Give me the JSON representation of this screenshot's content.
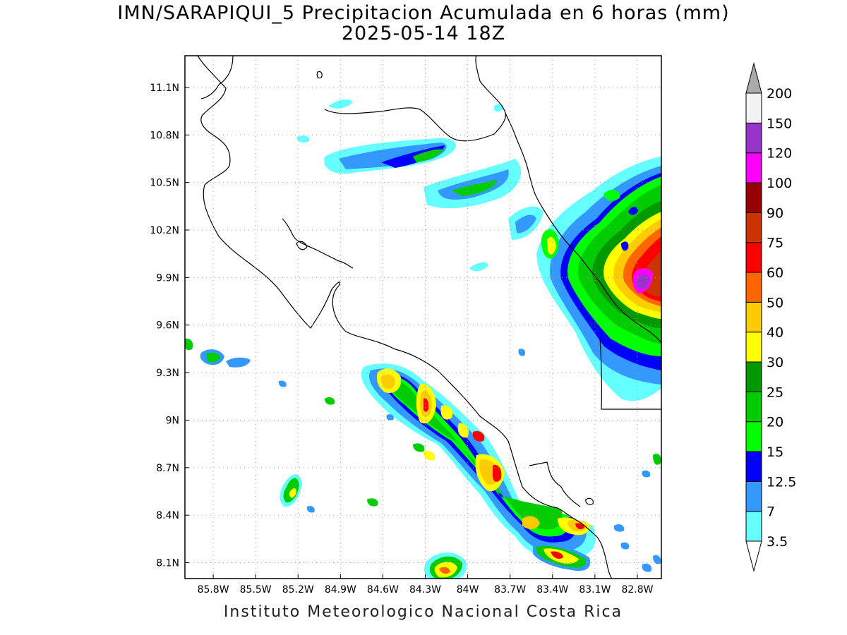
{
  "title": {
    "line1": "IMN/SARAPIQUI_5 Precipitacion Acumulada en 6 horas (mm)",
    "line2": "2025-05-14 18Z"
  },
  "footer": "Instituto Meteorologico Nacional Costa Rica",
  "map": {
    "lon_range": [
      -86.0,
      -82.63
    ],
    "lat_range": [
      8.0,
      11.3
    ],
    "x_ticks": [
      "85.8W",
      "85.5W",
      "85.2W",
      "84.9W",
      "84.6W",
      "84.3W",
      "84W",
      "83.7W",
      "83.4W",
      "83.1W",
      "82.8W"
    ],
    "y_ticks": [
      "11.1N",
      "10.8N",
      "10.5N",
      "10.2N",
      "9.9N",
      "9.6N",
      "9.3N",
      "9N",
      "8.7N",
      "8.4N",
      "8.1N"
    ],
    "grid": true
  },
  "colorbar": {
    "levels": [
      "3.5",
      "7",
      "12.5",
      "15",
      "20",
      "25",
      "30",
      "40",
      "50",
      "60",
      "75",
      "90",
      "100",
      "120",
      "150",
      "200"
    ],
    "colors": [
      "#66ffff",
      "#3399ff",
      "#0000ff",
      "#00ff00",
      "#00cc00",
      "#009900",
      "#ffff00",
      "#ffcc00",
      "#ff6600",
      "#ff0000",
      "#cc3300",
      "#990000",
      "#ff00ff",
      "#9933cc",
      "#f2f2f2"
    ],
    "over_color": "#aaaaaa",
    "under_color": "#ffffff"
  }
}
